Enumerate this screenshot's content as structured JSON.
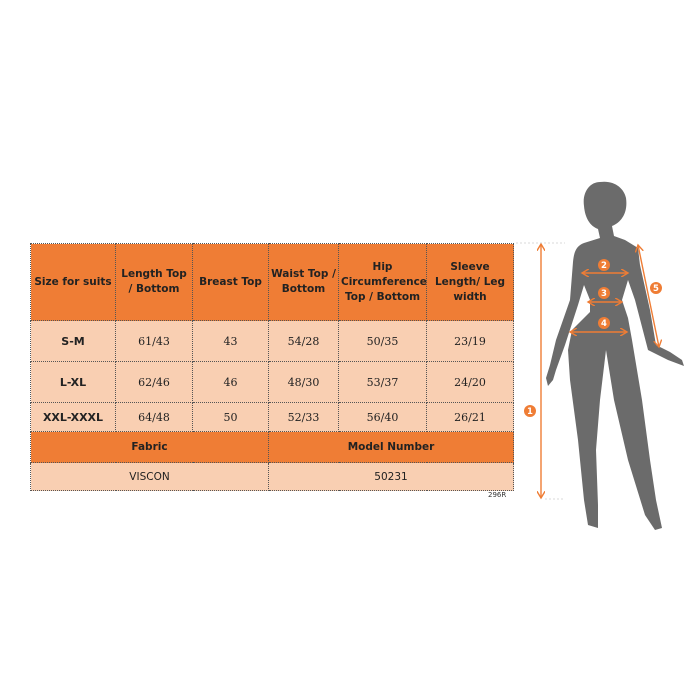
{
  "table": {
    "headers": [
      "Size for suits",
      "Length Top / Bottom",
      "Breast Top",
      "Waist Top / Bottom",
      "Hip Circumference Top / Bottom",
      "Sleeve Length/ Leg width"
    ],
    "rows": [
      [
        "S-M",
        "61/43",
        "43",
        "54/28",
        "50/35",
        "23/19"
      ],
      [
        "L-XL",
        "62/46",
        "46",
        "48/30",
        "53/37",
        "24/20"
      ],
      [
        "XXL-XXXL",
        "64/48",
        "50",
        "52/33",
        "56/40",
        "26/21"
      ]
    ],
    "fabric_label": "Fabric",
    "model_label": "Model Number",
    "fabric_value": "VISCON",
    "model_value": "50231"
  },
  "code": "296R",
  "figure": {
    "markers": [
      "1",
      "2",
      "3",
      "4",
      "5"
    ],
    "silhouette_color": "#6b6b6b",
    "accent_color": "#ef7d35"
  }
}
